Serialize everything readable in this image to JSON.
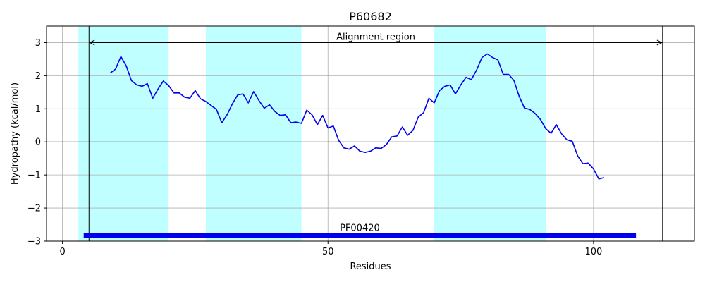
{
  "chart_data": {
    "type": "line",
    "title": "P60682",
    "xlabel": "Residues",
    "ylabel": "Hydropathy (kcal/mol)",
    "xlim": [
      -3,
      119
    ],
    "ylim": [
      -3,
      3.5
    ],
    "xticks": [
      0,
      50,
      100
    ],
    "yticks": [
      -3,
      -2,
      -1,
      0,
      1,
      2,
      3
    ],
    "grid": true,
    "colors": {
      "line": "#0000ee",
      "bands": "#c0ffff",
      "domain_bar": "#0000ee",
      "reference": "#000000",
      "grid": "#b0b0b0"
    },
    "shaded_regions": [
      [
        3,
        20
      ],
      [
        27,
        45
      ],
      [
        70,
        91
      ]
    ],
    "vertical_lines": [
      5,
      113
    ],
    "alignment_region": {
      "label": "Alignment region",
      "x_start": 5,
      "x_end": 113,
      "y": 3.0
    },
    "domain": {
      "label": "PF00420",
      "x_start": 4,
      "x_end": 108,
      "y": -2.82
    },
    "series": [
      {
        "x": [
          9,
          10,
          11,
          12,
          13,
          14,
          15,
          16,
          17,
          18,
          19,
          20,
          21,
          22,
          23,
          24,
          25,
          26,
          27,
          28,
          29,
          30,
          31,
          32,
          33,
          34,
          35,
          36,
          37,
          38,
          39,
          40,
          41,
          42,
          43,
          44,
          45,
          46,
          47,
          48,
          49,
          50,
          51,
          52,
          53,
          54,
          55,
          56,
          57,
          58,
          59,
          60,
          61,
          62,
          63,
          64,
          65,
          66,
          67,
          68,
          69,
          70,
          71,
          72,
          73,
          74,
          75,
          76,
          77,
          78,
          79,
          80,
          81,
          82,
          83,
          84,
          85,
          86,
          87,
          88,
          89,
          90,
          91,
          92,
          93,
          94,
          95,
          96,
          97,
          98,
          99,
          100,
          101,
          102
        ],
        "y": [
          2.08,
          2.2,
          2.58,
          2.3,
          1.85,
          1.72,
          1.68,
          1.76,
          1.32,
          1.6,
          1.84,
          1.7,
          1.48,
          1.48,
          1.35,
          1.32,
          1.55,
          1.3,
          1.22,
          1.1,
          0.98,
          0.58,
          0.82,
          1.15,
          1.42,
          1.45,
          1.18,
          1.52,
          1.25,
          1.02,
          1.12,
          0.92,
          0.8,
          0.82,
          0.58,
          0.6,
          0.56,
          0.96,
          0.82,
          0.52,
          0.8,
          0.42,
          0.48,
          0.05,
          -0.18,
          -0.22,
          -0.12,
          -0.28,
          -0.32,
          -0.28,
          -0.18,
          -0.2,
          -0.08,
          0.15,
          0.18,
          0.45,
          0.2,
          0.35,
          0.75,
          0.88,
          1.32,
          1.18,
          1.55,
          1.68,
          1.72,
          1.45,
          1.72,
          1.95,
          1.88,
          2.18,
          2.55,
          2.66,
          2.55,
          2.48,
          2.04,
          2.04,
          1.86,
          1.38,
          1.02,
          0.98,
          0.86,
          0.68,
          0.4,
          0.26,
          0.52,
          0.24,
          0.06,
          0.02,
          -0.42,
          -0.66,
          -0.64,
          -0.82,
          -1.12,
          -1.08
        ]
      }
    ]
  }
}
